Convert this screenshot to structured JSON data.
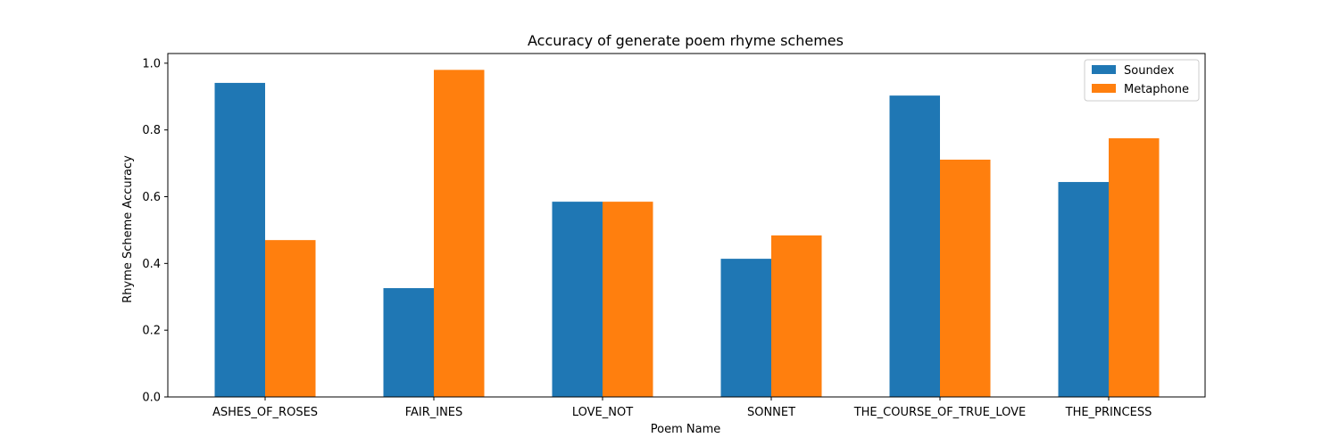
{
  "chart_data": {
    "type": "bar",
    "title": "Accuracy of generate poem rhyme schemes",
    "xlabel": "Poem Name",
    "ylabel": "Rhyme Scheme Accuracy",
    "categories": [
      "ASHES_OF_ROSES",
      "FAIR_INES",
      "LOVE_NOT",
      "SONNET",
      "THE_COURSE_OF_TRUE_LOVE",
      "THE_PRINCESS"
    ],
    "series": [
      {
        "name": "Soundex",
        "color": "#1f77b4",
        "values": [
          0.941,
          0.326,
          0.585,
          0.414,
          0.903,
          0.644
        ]
      },
      {
        "name": "Metaphone",
        "color": "#ff7f0e",
        "values": [
          0.47,
          0.98,
          0.585,
          0.484,
          0.711,
          0.775
        ]
      }
    ],
    "ylim": [
      0,
      1.0
    ],
    "yticks": [
      "0.0",
      "0.2",
      "0.4",
      "0.6",
      "0.8",
      "1.0"
    ],
    "grid": false,
    "legend_position": "top-right"
  }
}
